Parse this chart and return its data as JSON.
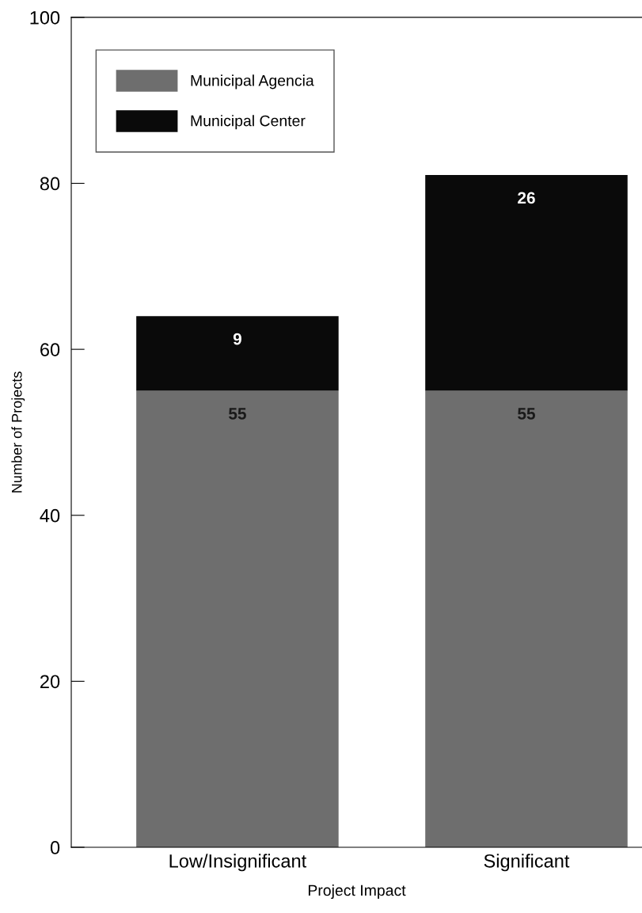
{
  "chart_data": {
    "type": "bar",
    "stacked": true,
    "xlabel": "Project Impact",
    "ylabel": "Number of Projects",
    "categories": [
      "Low/Insignificant",
      "Significant"
    ],
    "series": [
      {
        "name": "Municipal Agencia",
        "color": "#6e6e6e",
        "values": [
          55,
          55
        ],
        "value_labels": [
          "55",
          "55"
        ]
      },
      {
        "name": "Municipal Center",
        "color": "#0a0a0a",
        "values": [
          9,
          26
        ],
        "value_labels": [
          "9",
          "26"
        ]
      }
    ],
    "ylim": [
      0,
      100
    ],
    "yticks": [
      0,
      20,
      40,
      60,
      80,
      100
    ],
    "grid": false,
    "legend": "top left"
  }
}
